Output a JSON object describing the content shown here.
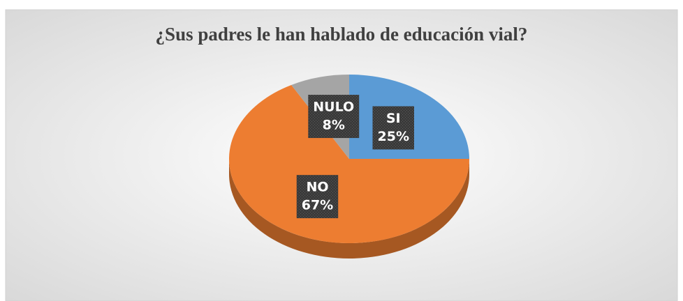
{
  "chart_data": {
    "type": "pie",
    "title": "¿Sus padres le han hablado de educación vial?",
    "categories": [
      "SI",
      "NO",
      "NULO"
    ],
    "values": [
      25,
      67,
      8
    ],
    "value_labels": [
      "25%",
      "67%",
      "8%"
    ],
    "colors": [
      "#5b9bd5",
      "#ed7d31",
      "#a5a5a5"
    ]
  }
}
